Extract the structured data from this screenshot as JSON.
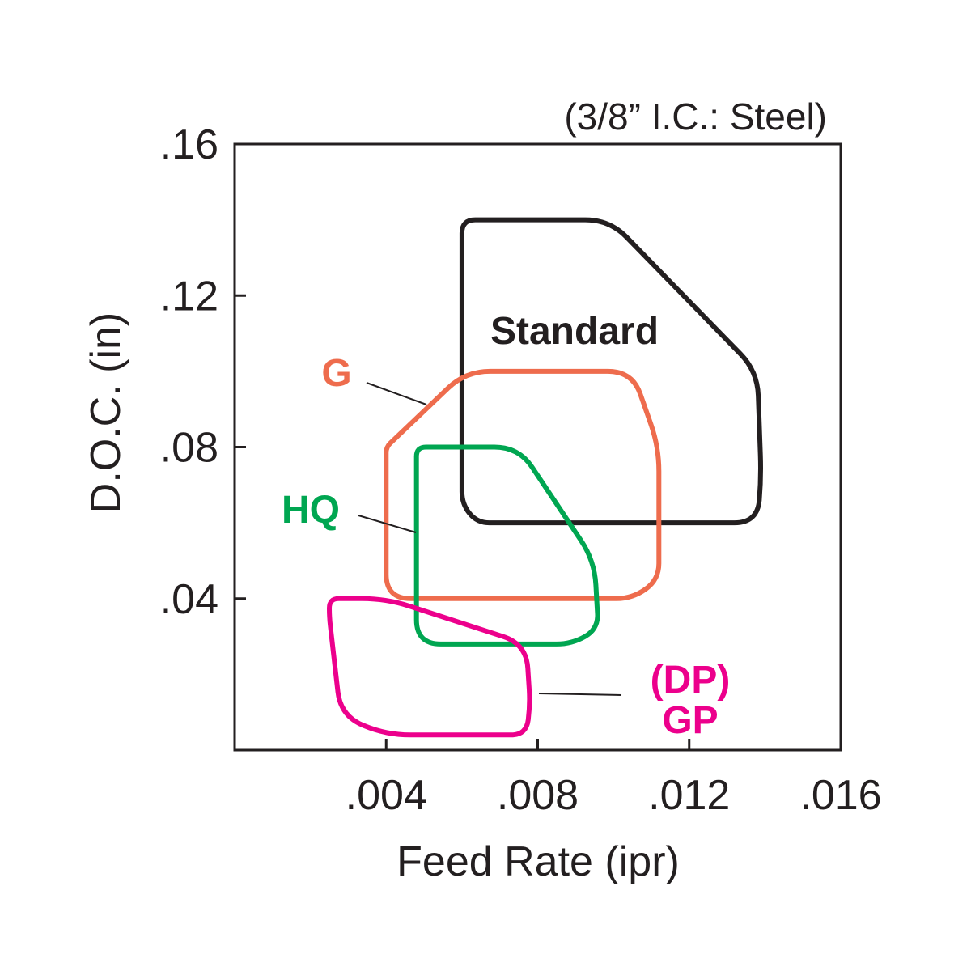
{
  "chart_data": {
    "type": "area",
    "subtitle": "(3/8” I.C.: Steel)",
    "xlabel": "Feed Rate (ipr)",
    "ylabel": "D.O.C. (in)",
    "xlim": [
      0,
      0.016
    ],
    "ylim": [
      0,
      0.16
    ],
    "x_ticks": [
      {
        "value": 0.004,
        "label": ".004"
      },
      {
        "value": 0.008,
        "label": ".008"
      },
      {
        "value": 0.012,
        "label": ".012"
      },
      {
        "value": 0.016,
        "label": ".016"
      }
    ],
    "y_ticks": [
      {
        "value": 0.04,
        "label": ".04"
      },
      {
        "value": 0.08,
        "label": ".08"
      },
      {
        "value": 0.12,
        "label": ".12"
      },
      {
        "value": 0.16,
        "label": ".16"
      }
    ],
    "grid": false,
    "series": [
      {
        "name": "Standard",
        "color": "#231f20",
        "x": [
          0.006,
          0.0099,
          0.0138,
          0.0139,
          0.0138,
          0.0064,
          0.006,
          0.006
        ],
        "y": [
          0.14,
          0.14,
          0.1,
          0.072,
          0.06,
          0.06,
          0.065,
          0.133
        ]
      },
      {
        "name": "G",
        "color": "#ee6c4d",
        "x": [
          0.004,
          0.0061,
          0.0105,
          0.0112,
          0.0112,
          0.0105,
          0.004,
          0.004
        ],
        "y": [
          0.08,
          0.1,
          0.1,
          0.08,
          0.045,
          0.04,
          0.04,
          0.077
        ]
      },
      {
        "name": "HQ",
        "color": "#00a651",
        "x": [
          0.0048,
          0.0075,
          0.0095,
          0.0096,
          0.0089,
          0.0048,
          0.0048
        ],
        "y": [
          0.08,
          0.08,
          0.05,
          0.032,
          0.028,
          0.028,
          0.075
        ]
      },
      {
        "name": "(DP) GP",
        "color": "#ec008c",
        "x": [
          0.0025,
          0.004,
          0.0077,
          0.0078,
          0.0077,
          0.004,
          0.0028,
          0.0025
        ],
        "y": [
          0.04,
          0.04,
          0.028,
          0.012,
          0.004,
          0.004,
          0.009,
          0.035
        ]
      }
    ],
    "annotations": [
      {
        "label": "Standard",
        "color": "#231f20"
      },
      {
        "label": "G",
        "color": "#ee6c4d"
      },
      {
        "label": "HQ",
        "color": "#00a651"
      },
      {
        "label": "(DP)",
        "color": "#ec008c"
      },
      {
        "label": "GP",
        "color": "#ec008c"
      }
    ]
  }
}
